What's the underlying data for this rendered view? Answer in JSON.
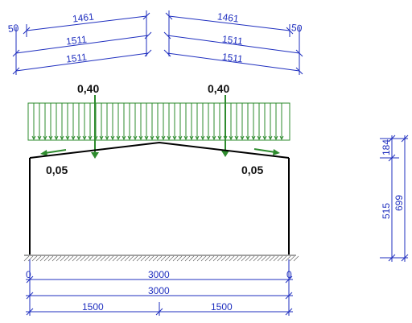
{
  "colors": {
    "dimension": "#1f2fbf",
    "load": "#2e8b2e",
    "frame": "#000000",
    "hatch": "#444444"
  },
  "roof_dimensions": {
    "left": {
      "offset": "50",
      "top": "1461",
      "mid": "1511",
      "bottom": "1511"
    },
    "right": {
      "offset": "50",
      "top": "1461",
      "mid": "1511",
      "bottom": "1511"
    }
  },
  "loads": {
    "left_main": "0,40",
    "right_main": "0,40",
    "left_secondary": "0,05",
    "right_secondary": "0,05"
  },
  "height_dimensions": {
    "upper": "184",
    "lower": "515",
    "total": "699"
  },
  "base_dimensions": {
    "left_offset": "0",
    "right_offset": "0",
    "span_1": "3000",
    "span_2": "3000",
    "half_left": "1500",
    "half_right": "1500"
  }
}
